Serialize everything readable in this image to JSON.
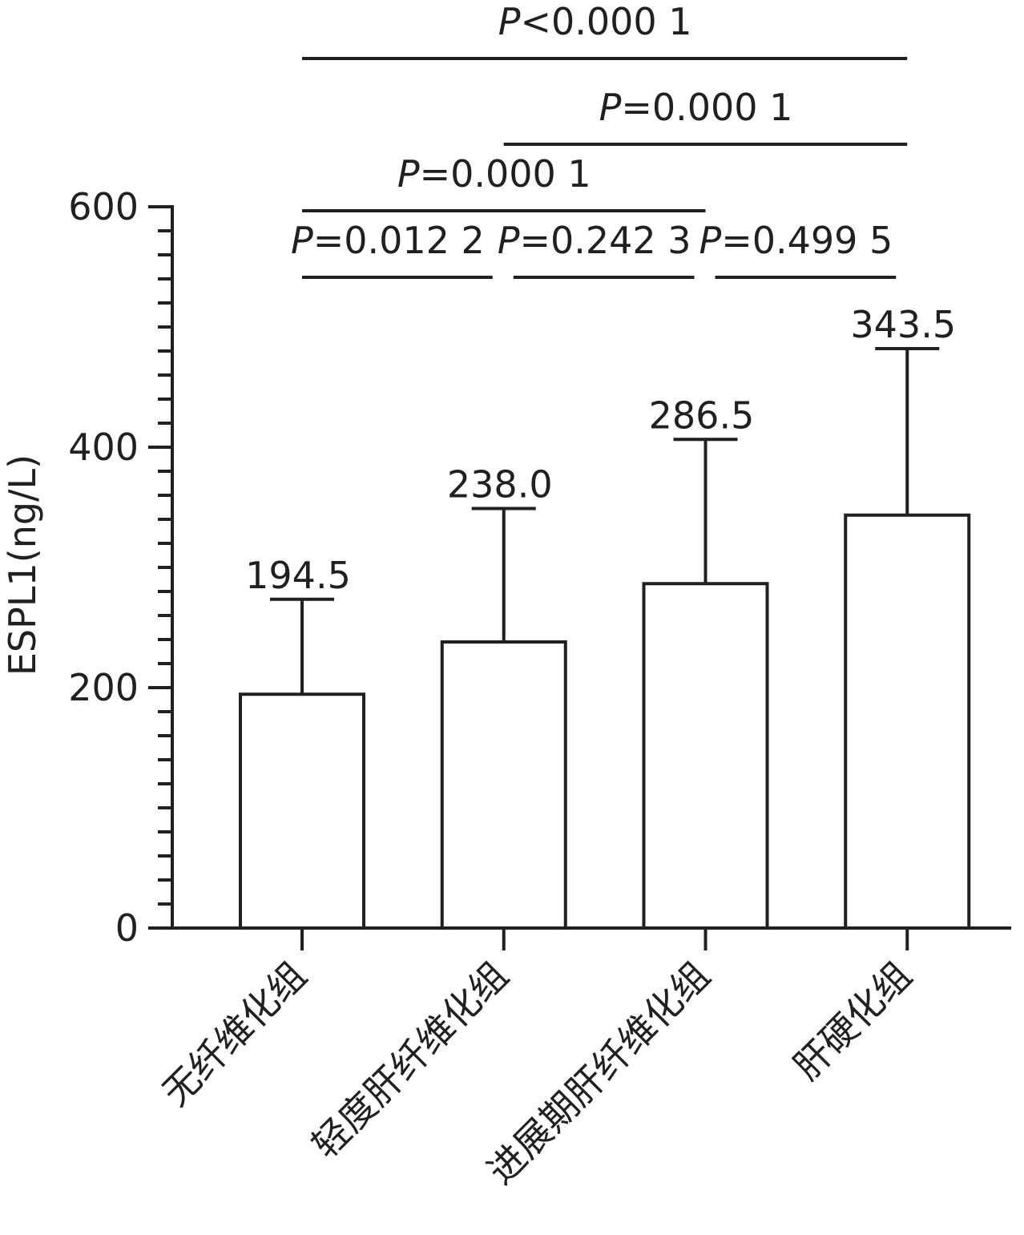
{
  "chart_data": {
    "type": "bar",
    "y_label": "ESPL1(ng/L)",
    "categories": [
      "无纤维化组",
      "轻度肝纤维化组",
      "进展期肝纤维化组",
      "肝硬化组"
    ],
    "values": [
      194.5,
      238.0,
      286.5,
      343.5
    ],
    "value_labels": [
      "194.5",
      "238.0",
      "286.5",
      "343.5"
    ],
    "errors": [
      79,
      111,
      120,
      138.5
    ],
    "color": "#ffffff",
    "edge_color": "#231f20",
    "ylim": [
      0,
      600
    ],
    "yticks": [
      0,
      200,
      400,
      600
    ],
    "yminorticks": [
      20,
      40,
      60,
      80,
      100,
      120,
      140,
      160,
      180,
      220,
      240,
      260,
      280,
      300,
      320,
      340,
      360,
      380,
      420,
      440,
      460,
      480,
      500,
      520,
      540,
      560,
      580
    ],
    "comparisons": [
      {
        "from": 0,
        "to": 1,
        "label": "P=0.012 2"
      },
      {
        "from": 1,
        "to": 2,
        "label": "P=0.242 3"
      },
      {
        "from": 2,
        "to": 3,
        "label": "P=0.499 5"
      },
      {
        "from": 0,
        "to": 2,
        "label": "P=0.000 1"
      },
      {
        "from": 1,
        "to": 3,
        "label": "P=0.000 1"
      },
      {
        "from": 0,
        "to": 3,
        "label": "P<0.000 1"
      }
    ]
  }
}
